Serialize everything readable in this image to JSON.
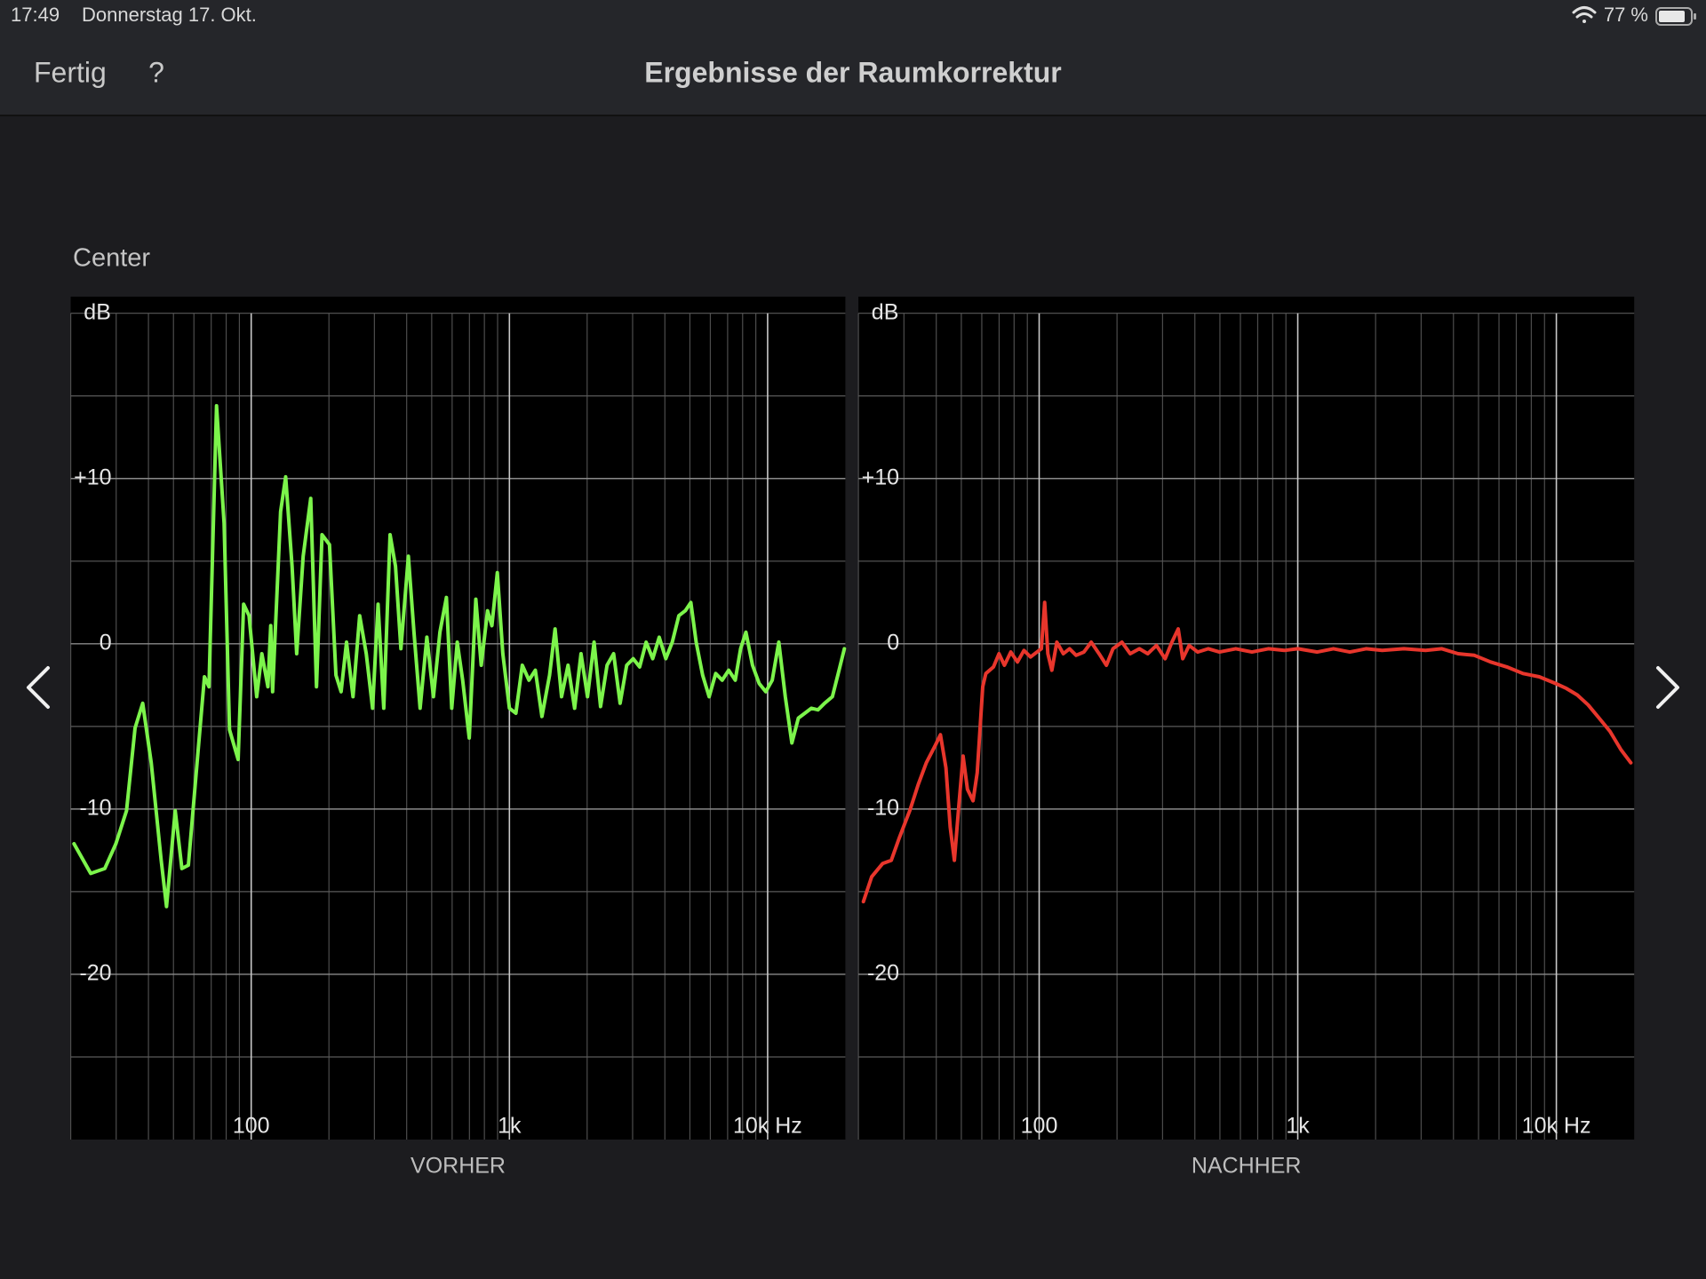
{
  "status_bar": {
    "time": "17:49",
    "date": "Donnerstag 17. Okt.",
    "battery": "77 %"
  },
  "nav": {
    "done": "Fertig",
    "help": "?",
    "title": "Ergebnisse der Raumkorrektur"
  },
  "section_title": "Center",
  "chart_data": [
    {
      "type": "line",
      "xlabel": "VORHER",
      "ylabel": "dB",
      "xscale": "log",
      "grid": true,
      "xlim": [
        20,
        20000
      ],
      "ylim": [
        -30,
        20
      ],
      "xticks": [
        100,
        {
          "value": 1000,
          "label": "1k"
        },
        {
          "value": 10000,
          "label": "10k Hz"
        }
      ],
      "yticks": [
        {
          "value": 10,
          "label": "+10"
        },
        0,
        -10,
        -20
      ],
      "xgrid": [
        20,
        30,
        40,
        50,
        60,
        70,
        80,
        90,
        200,
        300,
        400,
        500,
        600,
        700,
        800,
        900,
        2000,
        3000,
        4000,
        5000,
        6000,
        7000,
        8000,
        9000
      ],
      "ygrid": [
        20,
        15,
        5,
        -5,
        -15,
        -25
      ],
      "x": [
        20.6,
        23.9,
        27.1,
        29.9,
        32.9,
        35.5,
        38,
        41,
        44.8,
        47,
        50.8,
        53.9,
        57.1,
        61.7,
        65.9,
        68.6,
        73.4,
        78.5,
        82.4,
        89,
        93.5,
        98.1,
        105,
        110,
        116,
        119,
        121,
        130,
        136,
        144,
        150,
        159,
        170,
        179,
        188,
        201,
        213,
        223,
        234,
        248,
        263,
        279,
        295,
        310,
        326,
        345,
        362,
        380,
        406,
        427,
        451,
        479,
        508,
        538,
        570,
        598,
        628,
        659,
        699,
        741,
        778,
        823,
        855,
        898,
        943,
        1000,
        1059,
        1122,
        1190,
        1260,
        1336,
        1431,
        1502,
        1592,
        1687,
        1788,
        1894,
        2007,
        2127,
        2255,
        2389,
        2532,
        2684,
        2845,
        3015,
        3195,
        3386,
        3589,
        3804,
        4032,
        4273,
        4529,
        4800,
        5044,
        5286,
        5602,
        5938,
        6293,
        6670,
        7069,
        7492,
        7860,
        8240,
        8740,
        9270,
        9830,
        10420,
        11050,
        11710,
        12410,
        13150,
        13940,
        14780,
        15670,
        16610,
        17810,
        18700,
        19820
      ],
      "series": [
        {
          "color": "#7cf44b",
          "values": [
            -12.1,
            -13.9,
            -13.6,
            -12.1,
            -10.1,
            -5.1,
            -3.6,
            -7.2,
            -13.1,
            -15.9,
            -10.1,
            -13.6,
            -13.4,
            -7.2,
            -2.0,
            -2.6,
            14.4,
            7.3,
            -5.2,
            -7.0,
            2.4,
            1.7,
            -3.2,
            -0.6,
            -2.6,
            1.1,
            -2.9,
            8.0,
            10.1,
            4.7,
            -0.6,
            5.3,
            8.8,
            -2.6,
            6.6,
            6.0,
            -1.9,
            -2.9,
            0.1,
            -3.2,
            1.7,
            -0.6,
            -3.9,
            2.4,
            -3.9,
            6.6,
            4.7,
            -0.3,
            5.3,
            0.7,
            -3.9,
            0.4,
            -3.2,
            0.7,
            2.8,
            -3.9,
            0.1,
            -2.2,
            -5.7,
            2.7,
            -1.3,
            2.0,
            1.1,
            4.3,
            -0.6,
            -3.9,
            -4.2,
            -1.3,
            -2.2,
            -1.6,
            -4.4,
            -1.9,
            0.9,
            -3.2,
            -1.3,
            -3.9,
            -0.6,
            -3.2,
            0.1,
            -3.8,
            -1.3,
            -0.6,
            -3.6,
            -1.3,
            -0.9,
            -1.4,
            0.1,
            -0.9,
            0.4,
            -0.9,
            0.1,
            1.7,
            2.0,
            2.5,
            0.1,
            -1.9,
            -3.2,
            -1.8,
            -2.2,
            -1.6,
            -2.2,
            -0.3,
            0.7,
            -1.3,
            -2.4,
            -2.9,
            -2.2,
            0.1,
            -3.2,
            -6.0,
            -4.5,
            -4.2,
            -3.9,
            -4.0,
            -3.6,
            -3.2,
            -1.9,
            -0.3
          ]
        }
      ]
    },
    {
      "type": "line",
      "xlabel": "NACHHER",
      "ylabel": "dB",
      "xscale": "log",
      "grid": true,
      "xlim": [
        20,
        20000
      ],
      "ylim": [
        -30,
        20
      ],
      "xticks": [
        100,
        {
          "value": 1000,
          "label": "1k"
        },
        {
          "value": 10000,
          "label": "10k Hz"
        }
      ],
      "yticks": [
        {
          "value": 10,
          "label": "+10"
        },
        0,
        -10,
        -20
      ],
      "xgrid": [
        20,
        30,
        40,
        50,
        60,
        70,
        80,
        90,
        200,
        300,
        400,
        500,
        600,
        700,
        800,
        900,
        2000,
        3000,
        4000,
        5000,
        6000,
        7000,
        8000,
        9000
      ],
      "ygrid": [
        20,
        15,
        5,
        -5,
        -15,
        -25
      ],
      "x": [
        20.9,
        22.5,
        24.8,
        26.8,
        28.7,
        31.6,
        34.1,
        36.6,
        39.5,
        41.5,
        43.6,
        45.3,
        47,
        48.9,
        50.8,
        52.8,
        55.5,
        57.6,
        60.5,
        62.2,
        66.6,
        69.9,
        73.4,
        77.7,
        82.4,
        87.3,
        92.6,
        98.1,
        102,
        105,
        108,
        112,
        117,
        124,
        131,
        139,
        149,
        159,
        172,
        182,
        193,
        209,
        225,
        244,
        263,
        284,
        307,
        326,
        345,
        359,
        380,
        410,
        451,
        498,
        576,
        665,
        769,
        888,
        1000,
        1190,
        1374,
        1589,
        1836,
        2121,
        2573,
        3121,
        3607,
        4169,
        4819,
        5568,
        6434,
        7436,
        8593,
        9930,
        10940,
        12050,
        13280,
        14630,
        16120,
        17760,
        19410
      ],
      "series": [
        {
          "color": "#e8362c",
          "values": [
            -15.6,
            -14.1,
            -13.3,
            -13.1,
            -11.8,
            -10.1,
            -8.5,
            -7.2,
            -6.2,
            -5.5,
            -7.5,
            -11.1,
            -13.1,
            -9.8,
            -6.8,
            -8.8,
            -9.5,
            -7.8,
            -2.6,
            -1.8,
            -1.4,
            -0.6,
            -1.3,
            -0.5,
            -1.1,
            -0.4,
            -0.8,
            -0.5,
            -0.3,
            2.5,
            -0.6,
            -1.6,
            0.1,
            -0.6,
            -0.3,
            -0.7,
            -0.5,
            0.1,
            -0.7,
            -1.3,
            -0.3,
            0.1,
            -0.6,
            -0.3,
            -0.6,
            -0.1,
            -0.9,
            0.1,
            0.9,
            -0.9,
            -0.1,
            -0.5,
            -0.3,
            -0.5,
            -0.3,
            -0.5,
            -0.3,
            -0.4,
            -0.3,
            -0.5,
            -0.3,
            -0.5,
            -0.3,
            -0.4,
            -0.3,
            -0.4,
            -0.3,
            -0.6,
            -0.7,
            -1.1,
            -1.4,
            -1.8,
            -2.0,
            -2.4,
            -2.7,
            -3.1,
            -3.7,
            -4.5,
            -5.3,
            -6.4,
            -7.2
          ]
        }
      ]
    }
  ]
}
